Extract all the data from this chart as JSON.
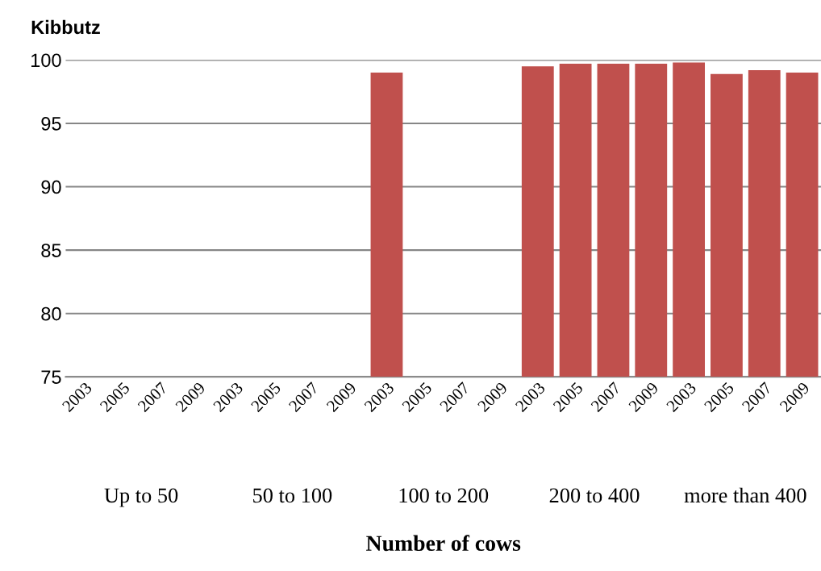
{
  "chart_data": {
    "type": "bar",
    "ylabel": "Kibbutz",
    "categories": [
      "2003",
      "2005",
      "2007",
      "2009",
      "2003",
      "2005",
      "2007",
      "2009",
      "2003",
      "2005",
      "2007",
      "2009",
      "2003",
      "2005",
      "2007",
      "2009",
      "2003",
      "2005",
      "2007",
      "2009"
    ],
    "series": [
      {
        "color": "#c0504d",
        "values": [
          null,
          null,
          null,
          null,
          null,
          null,
          null,
          null,
          99.0,
          null,
          null,
          null,
          99.5,
          99.7,
          99.7,
          99.7,
          99.8,
          98.9,
          99.2,
          99.0
        ]
      }
    ],
    "annotations": [
      "Up to 50",
      "50 to 100",
      "100 to 200",
      "200 to 400",
      "more than 400",
      "Number of cows"
    ],
    "ylim": [
      75,
      100
    ],
    "yticks": [
      75,
      80,
      85,
      90,
      95,
      100
    ],
    "grid": "y",
    "legend": false
  }
}
